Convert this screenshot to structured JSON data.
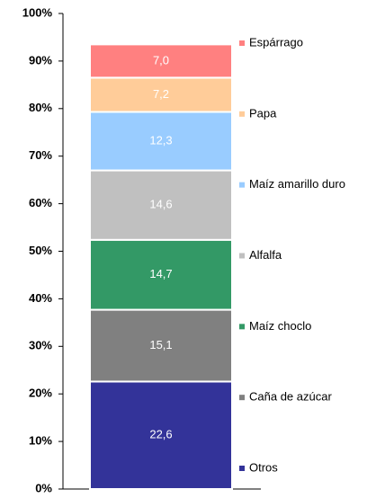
{
  "chart_data": {
    "type": "stacked_bar",
    "series": [
      {
        "name": "Otros",
        "color": "#333399",
        "values": [
          22.6
        ],
        "value_labels": [
          "22,6"
        ]
      },
      {
        "name": "Caña de azúcar",
        "color": "#808080",
        "values": [
          15.1
        ],
        "value_labels": [
          "15,1"
        ]
      },
      {
        "name": "Maíz choclo",
        "color": "#339966",
        "values": [
          14.7
        ],
        "value_labels": [
          "14,7"
        ]
      },
      {
        "name": "Alfalfa",
        "color": "#c0c0c0",
        "values": [
          14.6
        ],
        "value_labels": [
          "14,6"
        ]
      },
      {
        "name": "Maíz amarillo duro",
        "color": "#99ccff",
        "values": [
          12.3
        ],
        "value_labels": [
          "12,3"
        ]
      },
      {
        "name": "Papa",
        "color": "#ffcc99",
        "values": [
          7.2
        ],
        "value_labels": [
          "7,2"
        ]
      },
      {
        "name": "Espárrago",
        "color": "#ff8080",
        "values": [
          7.0
        ],
        "value_labels": [
          "7,0"
        ]
      }
    ],
    "ylim": [
      0,
      100
    ],
    "yticks": [
      {
        "value": 0,
        "label": "0%"
      },
      {
        "value": 10,
        "label": "10%"
      },
      {
        "value": 20,
        "label": "20%"
      },
      {
        "value": 30,
        "label": "30%"
      },
      {
        "value": 40,
        "label": "40%"
      },
      {
        "value": 50,
        "label": "50%"
      },
      {
        "value": 60,
        "label": "60%"
      },
      {
        "value": 70,
        "label": "70%"
      },
      {
        "value": 80,
        "label": "80%"
      },
      {
        "value": 90,
        "label": "90%"
      },
      {
        "value": 100,
        "label": "100%"
      }
    ],
    "legend": "right"
  }
}
